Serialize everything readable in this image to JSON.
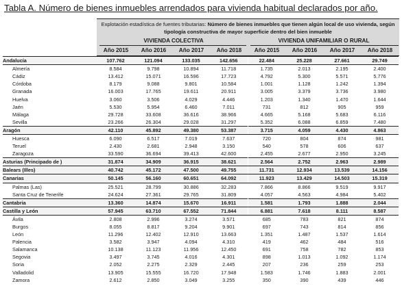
{
  "title": "Tabla A. Número de bienes inmuebles arrendados para vivienda habitual declarados por año.",
  "header": {
    "prefix": "Explotación estadística de fuentes tributarias: ",
    "bold": "Número de bienes inmuebles que tienen algún local de uso vivienda, según tipología constructiva de mayor superficie dentro del bien inmueble"
  },
  "groups": [
    "VIVIENDA COLECTIVA",
    "VIVIENDA UNIFAMILIAR O RURAL"
  ],
  "years": [
    "Año 2015",
    "Año 2016",
    "Año 2017",
    "Año 2018",
    "Año 2015",
    "Año 2016",
    "Año 2017",
    "Año 2018"
  ],
  "rows": [
    {
      "type": "region",
      "name": "Andalucía",
      "v": [
        "107.762",
        "121.094",
        "133.035",
        "142.656",
        "22.484",
        "25.228",
        "27.661",
        "29.749"
      ]
    },
    {
      "type": "province",
      "name": "Almería",
      "v": [
        "8.584",
        "9.798",
        "10.894",
        "11.718",
        "1.735",
        "2.013",
        "2.195",
        "2.400"
      ]
    },
    {
      "type": "province",
      "name": "Cádiz",
      "v": [
        "13.412",
        "15.071",
        "16.596",
        "17.723",
        "4.792",
        "5.300",
        "5.571",
        "5.776"
      ]
    },
    {
      "type": "province",
      "name": "Córdoba",
      "v": [
        "8.179",
        "9.088",
        "9.801",
        "10.584",
        "1.001",
        "1.128",
        "1.242",
        "1.394"
      ]
    },
    {
      "type": "province",
      "name": "Granada",
      "v": [
        "16.003",
        "17.765",
        "19.611",
        "20.911",
        "3.005",
        "3.379",
        "3.736",
        "3.980"
      ]
    },
    {
      "type": "province",
      "name": "Huelva",
      "v": [
        "3.060",
        "3.506",
        "4.029",
        "4.446",
        "1.203",
        "1.340",
        "1.470",
        "1.644"
      ]
    },
    {
      "type": "province",
      "name": "Jaén",
      "v": [
        "5.530",
        "5.954",
        "6.460",
        "7.011",
        "731",
        "812",
        "905",
        "959"
      ]
    },
    {
      "type": "province",
      "name": "Málaga",
      "v": [
        "29.728",
        "33.608",
        "36.616",
        "38.966",
        "4.665",
        "5.168",
        "5.683",
        "6.116"
      ]
    },
    {
      "type": "province",
      "name": "Sevilla",
      "v": [
        "23.266",
        "26.304",
        "29.028",
        "31.297",
        "5.352",
        "6.088",
        "6.859",
        "7.480"
      ]
    },
    {
      "type": "region",
      "name": "Aragón",
      "v": [
        "42.110",
        "45.892",
        "49.380",
        "53.387",
        "3.715",
        "4.059",
        "4.430",
        "4.863"
      ]
    },
    {
      "type": "province",
      "name": "Huesca",
      "v": [
        "6.090",
        "6.517",
        "7.019",
        "7.637",
        "720",
        "804",
        "874",
        "981"
      ]
    },
    {
      "type": "province",
      "name": "Teruel",
      "v": [
        "2.430",
        "2.681",
        "2.948",
        "3.150",
        "540",
        "578",
        "606",
        "637"
      ]
    },
    {
      "type": "province",
      "name": "Zaragoza",
      "v": [
        "33.590",
        "36.694",
        "39.413",
        "42.600",
        "2.455",
        "2.677",
        "2.950",
        "3.245"
      ]
    },
    {
      "type": "region",
      "name": "Asturias (Principado de )",
      "v": [
        "31.874",
        "34.909",
        "36.915",
        "38.621",
        "2.564",
        "2.752",
        "2.963",
        "2.989"
      ]
    },
    {
      "type": "region",
      "name": "Balears (Illes)",
      "v": [
        "40.742",
        "45.172",
        "47.500",
        "49.755",
        "11.731",
        "12.934",
        "13.539",
        "14.156"
      ]
    },
    {
      "type": "region",
      "name": "Canarias",
      "v": [
        "50.145",
        "56.160",
        "60.651",
        "64.092",
        "11.923",
        "13.429",
        "14.503",
        "15.319"
      ]
    },
    {
      "type": "province",
      "name": "Palmas (Las)",
      "v": [
        "25.521",
        "28.799",
        "30.886",
        "32.283",
        "7.866",
        "8.866",
        "9.519",
        "9.917"
      ]
    },
    {
      "type": "province",
      "name": "Santa Cruz de Tenerife",
      "v": [
        "24.624",
        "27.361",
        "29.765",
        "31.809",
        "4.057",
        "4.563",
        "4.984",
        "5.402"
      ]
    },
    {
      "type": "region",
      "name": "Cantabria",
      "v": [
        "13.360",
        "14.874",
        "15.670",
        "16.911",
        "1.581",
        "1.793",
        "1.888",
        "2.044"
      ]
    },
    {
      "type": "region",
      "name": "Castilla y León",
      "v": [
        "57.945",
        "63.710",
        "67.552",
        "71.844",
        "6.881",
        "7.618",
        "8.111",
        "8.587"
      ]
    },
    {
      "type": "province",
      "name": "Ávila",
      "v": [
        "2.808",
        "2.996",
        "3.274",
        "3.571",
        "685",
        "783",
        "821",
        "874"
      ]
    },
    {
      "type": "province",
      "name": "Burgos",
      "v": [
        "8.055",
        "8.817",
        "9.204",
        "9.901",
        "697",
        "743",
        "814",
        "856"
      ]
    },
    {
      "type": "province",
      "name": "León",
      "v": [
        "11.296",
        "12.402",
        "12.910",
        "13.663",
        "1.351",
        "1.487",
        "1.537",
        "1.614"
      ]
    },
    {
      "type": "province",
      "name": "Palencia",
      "v": [
        "3.582",
        "3.947",
        "4.094",
        "4.310",
        "419",
        "462",
        "484",
        "516"
      ]
    },
    {
      "type": "province",
      "name": "Salamanca",
      "v": [
        "10.138",
        "11.123",
        "11.956",
        "12.450",
        "691",
        "758",
        "782",
        "853"
      ]
    },
    {
      "type": "province",
      "name": "Segovia",
      "v": [
        "3.497",
        "3.745",
        "4.016",
        "4.301",
        "898",
        "1.013",
        "1.092",
        "1.174"
      ]
    },
    {
      "type": "province",
      "name": "Soria",
      "v": [
        "2.052",
        "2.275",
        "2.329",
        "2.445",
        "207",
        "236",
        "259",
        "253"
      ]
    },
    {
      "type": "province",
      "name": "Valladolid",
      "v": [
        "13.905",
        "15.555",
        "16.720",
        "17.948",
        "1.583",
        "1.746",
        "1.883",
        "2.001"
      ]
    },
    {
      "type": "province",
      "name": "Zamora",
      "v": [
        "2.612",
        "2.850",
        "3.049",
        "3.255",
        "350",
        "390",
        "439",
        "446"
      ]
    }
  ]
}
